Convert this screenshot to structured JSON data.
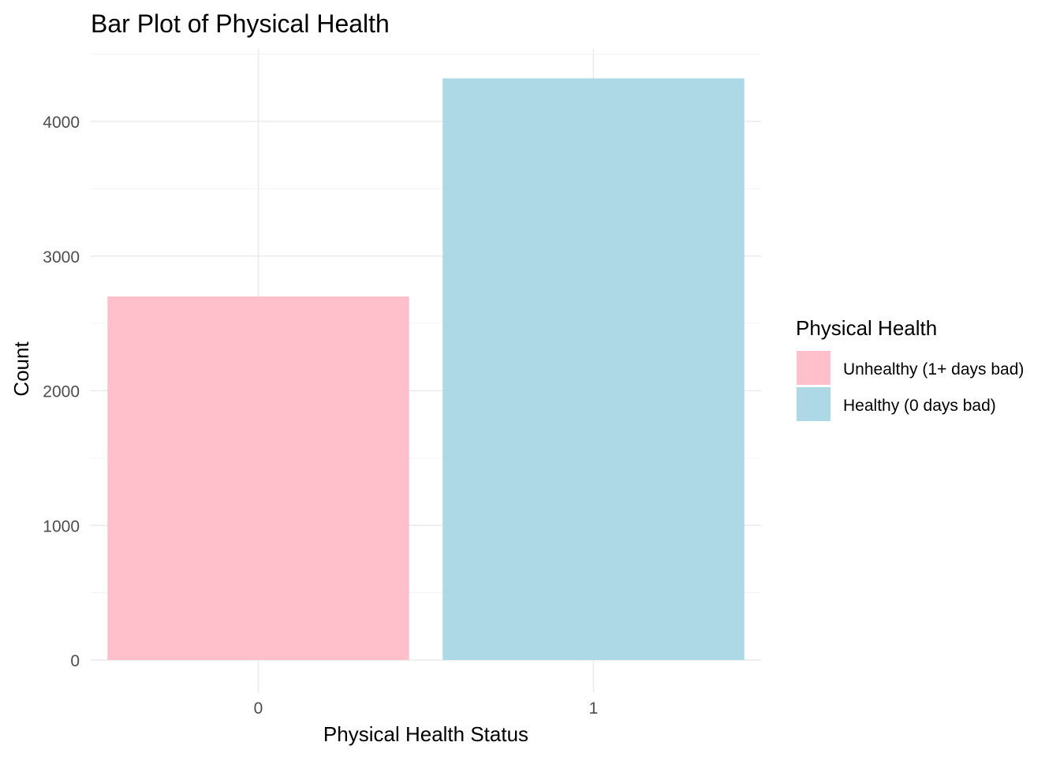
{
  "chart_data": {
    "type": "bar",
    "title": "Bar Plot of Physical Health",
    "xlabel": "Physical Health Status",
    "ylabel": "Count",
    "categories": [
      "0",
      "1"
    ],
    "values": [
      2700,
      4320
    ],
    "colors": [
      "#ffc0cb",
      "#add8e6"
    ],
    "ylim": [
      0,
      4500
    ],
    "yticks": [
      0,
      1000,
      2000,
      3000,
      4000
    ],
    "grid": true,
    "legend": {
      "title": "Physical Health",
      "position": "right",
      "entries": [
        {
          "label": "Unhealthy (1+ days bad)",
          "color": "#ffc0cb"
        },
        {
          "label": "Healthy (0 days bad)",
          "color": "#add8e6"
        }
      ]
    }
  }
}
